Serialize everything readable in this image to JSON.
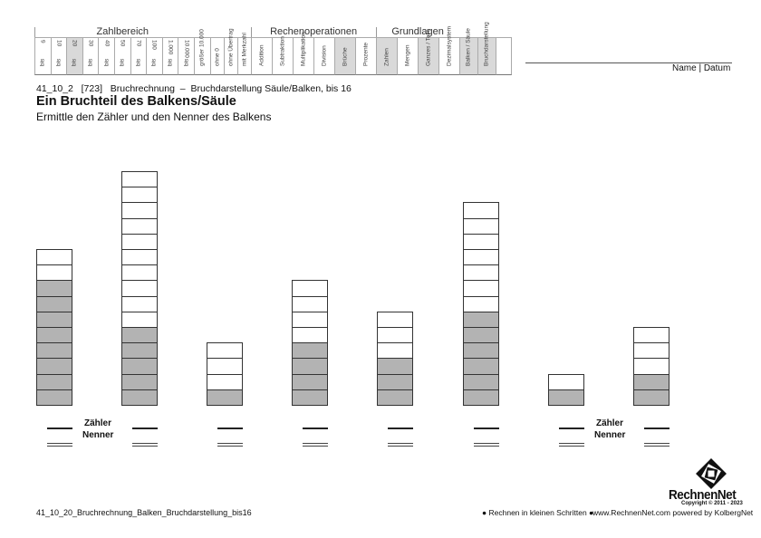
{
  "header": {
    "groups": [
      {
        "label": "Zahlbereich"
      },
      {
        "label": "Rechenoperationen"
      },
      {
        "label": "Grundlagen"
      }
    ],
    "zahlbereich": [
      {
        "top": "9",
        "bottom": "bis",
        "shaded": false
      },
      {
        "top": "10",
        "bottom": "bis",
        "shaded": false
      },
      {
        "top": "20",
        "bottom": "bis",
        "shaded": true
      },
      {
        "top": "30",
        "bottom": "bis",
        "shaded": false
      },
      {
        "top": "40",
        "bottom": "bis",
        "shaded": false
      },
      {
        "top": "50",
        "bottom": "bis",
        "shaded": false
      },
      {
        "top": "70",
        "bottom": "bis",
        "shaded": false
      },
      {
        "top": "100",
        "bottom": "bis",
        "shaded": false
      },
      {
        "top": "1.000",
        "bottom": "bis",
        "shaded": false
      },
      {
        "top": "10.000",
        "bottom": "bis",
        "shaded": false
      },
      {
        "top": "",
        "bottom": "größer 10.000",
        "shaded": false
      }
    ],
    "extra": [
      {
        "label": "ohne 0",
        "shaded": false
      },
      {
        "label": "ohne Übertrag",
        "shaded": false
      },
      {
        "label": "mit Merkzahl",
        "shaded": false
      }
    ],
    "rechenoperationen": [
      {
        "label": "Addition",
        "shaded": false
      },
      {
        "label": "Subtraktion",
        "shaded": false
      },
      {
        "label": "Multiplikation",
        "shaded": false
      },
      {
        "label": "Division",
        "shaded": false
      },
      {
        "label": "Brüche",
        "shaded": true
      },
      {
        "label": "Prozente",
        "shaded": false
      }
    ],
    "grundlagen": [
      {
        "label": "Zahlen",
        "shaded": true
      },
      {
        "label": "Mengen",
        "shaded": false
      },
      {
        "label": "Ganzes / Teile",
        "shaded": true
      },
      {
        "label": "Dezimalsystem",
        "shaded": false
      }
    ],
    "darstellung": [
      {
        "label": "Balken / Säule",
        "shaded": true
      },
      {
        "label": "Bruchdarstellung",
        "shaded": true
      }
    ],
    "name_datum": "Name | Datum"
  },
  "title": {
    "code": "41_10_2   [723]   Bruchrechnung  –  Bruchdarstellung Säule/Balken, bis 16",
    "heading": "Ein Bruchteil des Balkens/Säule",
    "instruction": "Ermittle den Zähler und den Nenner des Balkens"
  },
  "labels": {
    "zaehler": "Zähler",
    "nenner": "Nenner"
  },
  "chart_data": {
    "type": "bar",
    "bars": [
      {
        "total": 10,
        "shaded": 8
      },
      {
        "total": 15,
        "shaded": 5
      },
      {
        "total": 4,
        "shaded": 1
      },
      {
        "total": 8,
        "shaded": 4
      },
      {
        "total": 6,
        "shaded": 3
      },
      {
        "total": 13,
        "shaded": 6
      },
      {
        "total": 2,
        "shaded": 1
      },
      {
        "total": 5,
        "shaded": 2
      }
    ],
    "colors": {
      "shaded": "#b3b3b3",
      "empty": "#ffffff"
    }
  },
  "footer": {
    "filename": "41_10_20_Bruchrechnung_Balken_Bruchdarstellung_bis16",
    "slogan": "● Rechnen in kleinen Schritten ●",
    "site": "www.RechnenNet.com powered by KolbergNet",
    "logo": "RechnenNet",
    "copyright": "Copyright © 2011 - 2023"
  }
}
